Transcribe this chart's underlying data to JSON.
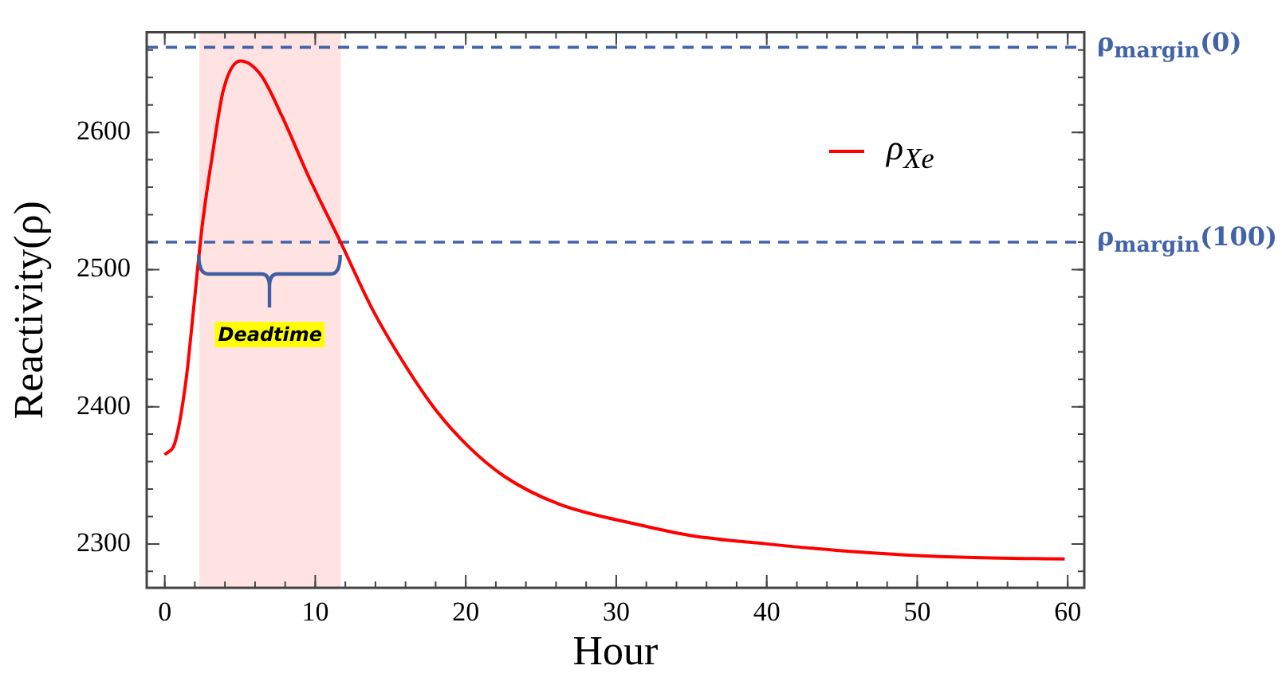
{
  "chart_data": {
    "type": "line",
    "xlabel": "Hour",
    "ylabel": "Reactivity(ρ)",
    "xlim": [
      -1.2,
      61.1
    ],
    "ylim": [
      2268,
      2673
    ],
    "xticks": [
      0,
      10,
      20,
      30,
      40,
      50,
      60
    ],
    "yticks": [
      2300,
      2400,
      2500,
      2600
    ],
    "grid": false,
    "legend": "top right",
    "line_style": "solid",
    "marker": "none",
    "series": [
      {
        "name": "ρ$_{Xe}$",
        "color": "#ff0000",
        "x": [
          0,
          0.71,
          1.42,
          1.95,
          2.48,
          3.2,
          3.9,
          5.03,
          6.37,
          7.78,
          9.55,
          11.68,
          13.8,
          15.93,
          18.05,
          20.18,
          22.6,
          26.2,
          31.5,
          35,
          40,
          45,
          49.2,
          53.8,
          59.8
        ],
        "values": [
          2365,
          2375,
          2420,
          2475,
          2531,
          2586,
          2631,
          2652,
          2642,
          2612,
          2568,
          2520,
          2471,
          2431,
          2397,
          2371,
          2349,
          2329,
          2314,
          2306,
          2300,
          2295,
          2292,
          2290,
          2289
        ]
      }
    ],
    "ref_lines": [
      {
        "axis": "y",
        "value": 2662,
        "label": "ρ$_{margin}$(0)",
        "color": "#4263a8",
        "line_style": "dashed"
      },
      {
        "axis": "y",
        "value": 2520,
        "label": "ρ$_{margin}$(100)",
        "color": "#4263a8",
        "line_style": "dashed"
      }
    ],
    "bands": [
      {
        "axis": "x",
        "from": 2.3,
        "to": 11.7,
        "color": "#ffe3e3",
        "label": "Deadtime"
      }
    ]
  }
}
